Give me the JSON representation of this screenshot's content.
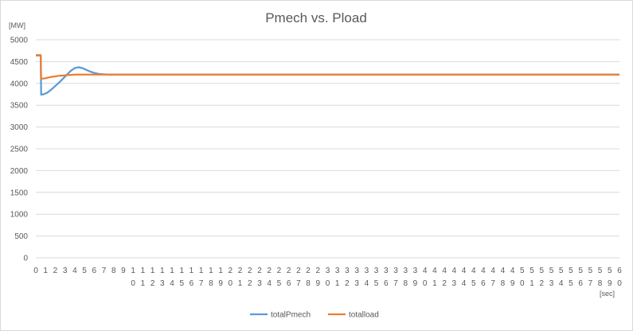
{
  "chart_data": {
    "type": "line",
    "title": "Pmech vs. Pload",
    "ylabel": "[MW]",
    "xlabel": "[sec]",
    "ylim": [
      0,
      5000
    ],
    "yticks": [
      "0",
      "500",
      "1000",
      "1500",
      "2000",
      "2500",
      "3000",
      "3500",
      "4000",
      "4500",
      "5000"
    ],
    "xlim": [
      0,
      60
    ],
    "xticks": [
      "0",
      "1",
      "2",
      "3",
      "4",
      "5",
      "6",
      "7",
      "8",
      "9",
      "10",
      "11",
      "12",
      "13",
      "14",
      "15",
      "16",
      "17",
      "18",
      "19",
      "20",
      "21",
      "22",
      "23",
      "24",
      "25",
      "26",
      "27",
      "28",
      "29",
      "30",
      "31",
      "32",
      "33",
      "34",
      "35",
      "36",
      "37",
      "38",
      "39",
      "40",
      "41",
      "42",
      "43",
      "44",
      "45",
      "46",
      "47",
      "48",
      "49",
      "50",
      "51",
      "52",
      "53",
      "54",
      "55",
      "56",
      "57",
      "58",
      "59",
      "60"
    ],
    "grid": true,
    "legend_position": "bottom",
    "series": [
      {
        "name": "totalPmech",
        "color": "#5b9bd5",
        "x": [
          0,
          0.5,
          0.55,
          0.8,
          1.2,
          1.6,
          2.0,
          2.4,
          2.8,
          3.2,
          3.6,
          4.0,
          4.4,
          4.8,
          5.2,
          5.6,
          6.0,
          6.4,
          6.8,
          7.2,
          7.6,
          8.0,
          9.0,
          60
        ],
        "y": [
          4640,
          4640,
          3740,
          3750,
          3790,
          3860,
          3940,
          4020,
          4110,
          4200,
          4290,
          4350,
          4370,
          4350,
          4310,
          4270,
          4240,
          4220,
          4210,
          4205,
          4200,
          4200,
          4200,
          4200
        ]
      },
      {
        "name": "totalload",
        "color": "#ed7d31",
        "x": [
          0,
          0.5,
          0.55,
          0.8,
          1.2,
          1.6,
          2.0,
          2.4,
          2.8,
          3.2,
          3.6,
          4.0,
          4.4,
          5.0,
          6.0,
          60
        ],
        "y": [
          4650,
          4650,
          4110,
          4110,
          4130,
          4150,
          4160,
          4175,
          4180,
          4190,
          4195,
          4200,
          4200,
          4200,
          4200,
          4200
        ]
      }
    ]
  }
}
